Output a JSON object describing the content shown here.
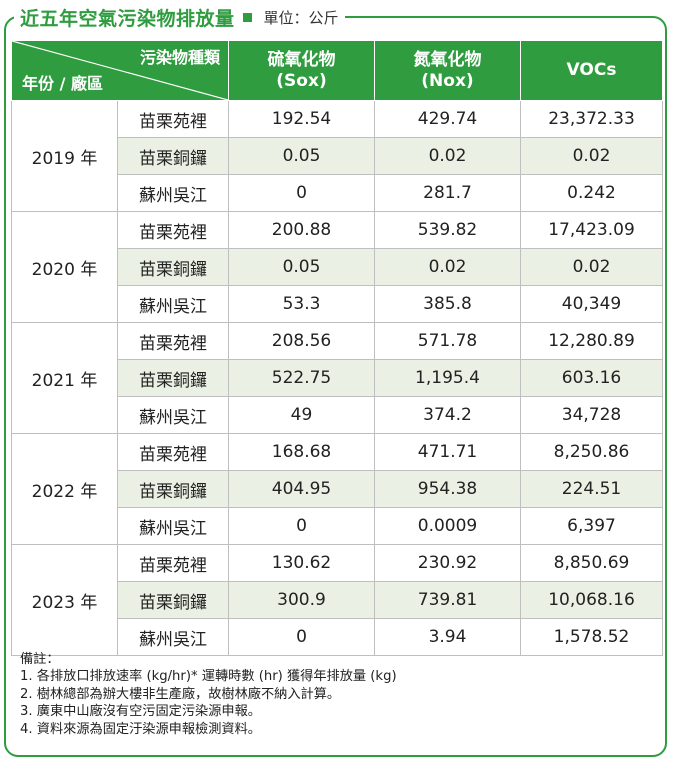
{
  "title": "近五年空氣污染物排放量",
  "unit": "單位：公斤",
  "header": {
    "corner_top": "污染物種類",
    "corner_bottom": "年份 / 廠區",
    "col1": [
      "硫氧化物",
      "(Sox)"
    ],
    "col2": [
      "氮氧化物",
      "(Nox)"
    ],
    "col3": "VOCs"
  },
  "rows": [
    {
      "year": "2019 年",
      "plants": [
        {
          "plant": "苗栗苑裡",
          "sox": "192.54",
          "nox": "429.74",
          "vocs": "23,372.33"
        },
        {
          "plant": "苗栗銅鑼",
          "sox": "0.05",
          "nox": "0.02",
          "vocs": "0.02"
        },
        {
          "plant": "蘇州吳江",
          "sox": "0",
          "nox": "281.7",
          "vocs": "0.242"
        }
      ]
    },
    {
      "year": "2020 年",
      "plants": [
        {
          "plant": "苗栗苑裡",
          "sox": "200.88",
          "nox": "539.82",
          "vocs": "17,423.09"
        },
        {
          "plant": "苗栗銅鑼",
          "sox": "0.05",
          "nox": "0.02",
          "vocs": "0.02"
        },
        {
          "plant": "蘇州吳江",
          "sox": "53.3",
          "nox": "385.8",
          "vocs": "40,349"
        }
      ]
    },
    {
      "year": "2021 年",
      "plants": [
        {
          "plant": "苗栗苑裡",
          "sox": "208.56",
          "nox": "571.78",
          "vocs": "12,280.89"
        },
        {
          "plant": "苗栗銅鑼",
          "sox": "522.75",
          "nox": "1,195.4",
          "vocs": "603.16"
        },
        {
          "plant": "蘇州吳江",
          "sox": "49",
          "nox": "374.2",
          "vocs": "34,728"
        }
      ]
    },
    {
      "year": "2022 年",
      "plants": [
        {
          "plant": "苗栗苑裡",
          "sox": "168.68",
          "nox": "471.71",
          "vocs": "8,250.86"
        },
        {
          "plant": "苗栗銅鑼",
          "sox": "404.95",
          "nox": "954.38",
          "vocs": "224.51"
        },
        {
          "plant": "蘇州吳江",
          "sox": "0",
          "nox": "0.0009",
          "vocs": "6,397"
        }
      ]
    },
    {
      "year": "2023 年",
      "plants": [
        {
          "plant": "苗栗苑裡",
          "sox": "130.62",
          "nox": "230.92",
          "vocs": "8,850.69"
        },
        {
          "plant": "苗栗銅鑼",
          "sox": "300.9",
          "nox": "739.81",
          "vocs": "10,068.16"
        },
        {
          "plant": "蘇州吳江",
          "sox": "0",
          "nox": "3.94",
          "vocs": "1,578.52"
        }
      ]
    }
  ],
  "notes": {
    "heading": "備註：",
    "items": [
      "1. 各排放口排放速率 (kg/hr)* 運轉時數 (hr) 獲得年排放量 (kg)",
      "2. 樹林總部為辦大樓非生產廠，故樹林廠不納入計算。",
      "3. 廣東中山廠沒有空污固定污染源申報。",
      "4. 資料來源為固定汙染源申報檢測資料。"
    ]
  },
  "colors": {
    "accent": "#2e9c3f",
    "shade": "#eaf1e4",
    "grid": "#bfbfbf"
  }
}
